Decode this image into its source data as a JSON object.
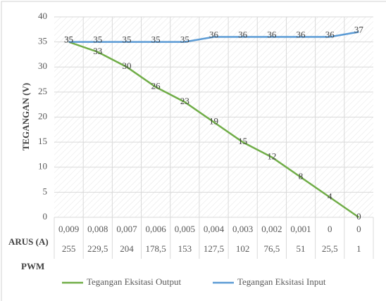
{
  "chart_data": {
    "type": "line",
    "ylabel": "TEGANGAN (V)",
    "xlabel": "ARUS (A)",
    "categories": [
      "0,009",
      "0,008",
      "0,007",
      "0,006",
      "0,005",
      "0,004",
      "0,003",
      "0,002",
      "0,001",
      "0",
      "0"
    ],
    "x2label": "PWM",
    "categories2": [
      "255",
      "229,5",
      "204",
      "178,5",
      "153",
      "127,5",
      "102",
      "76,5",
      "51",
      "25,5",
      "1"
    ],
    "series": [
      {
        "name": "Tegangan Eksitasi Output",
        "color": "#70ad47",
        "values": [
          35,
          33,
          30,
          26,
          23,
          19,
          15,
          12,
          8,
          4,
          0
        ]
      },
      {
        "name": "Tegangan Eksitasi Input",
        "color": "#5b9bd5",
        "values": [
          35,
          35,
          35,
          35,
          35,
          36,
          36,
          36,
          36,
          36,
          37
        ]
      }
    ],
    "ylim": [
      0,
      40
    ],
    "yticks": [
      0,
      5,
      10,
      15,
      20,
      25,
      30,
      35,
      40
    ],
    "grid": true,
    "legend": "bottom"
  }
}
